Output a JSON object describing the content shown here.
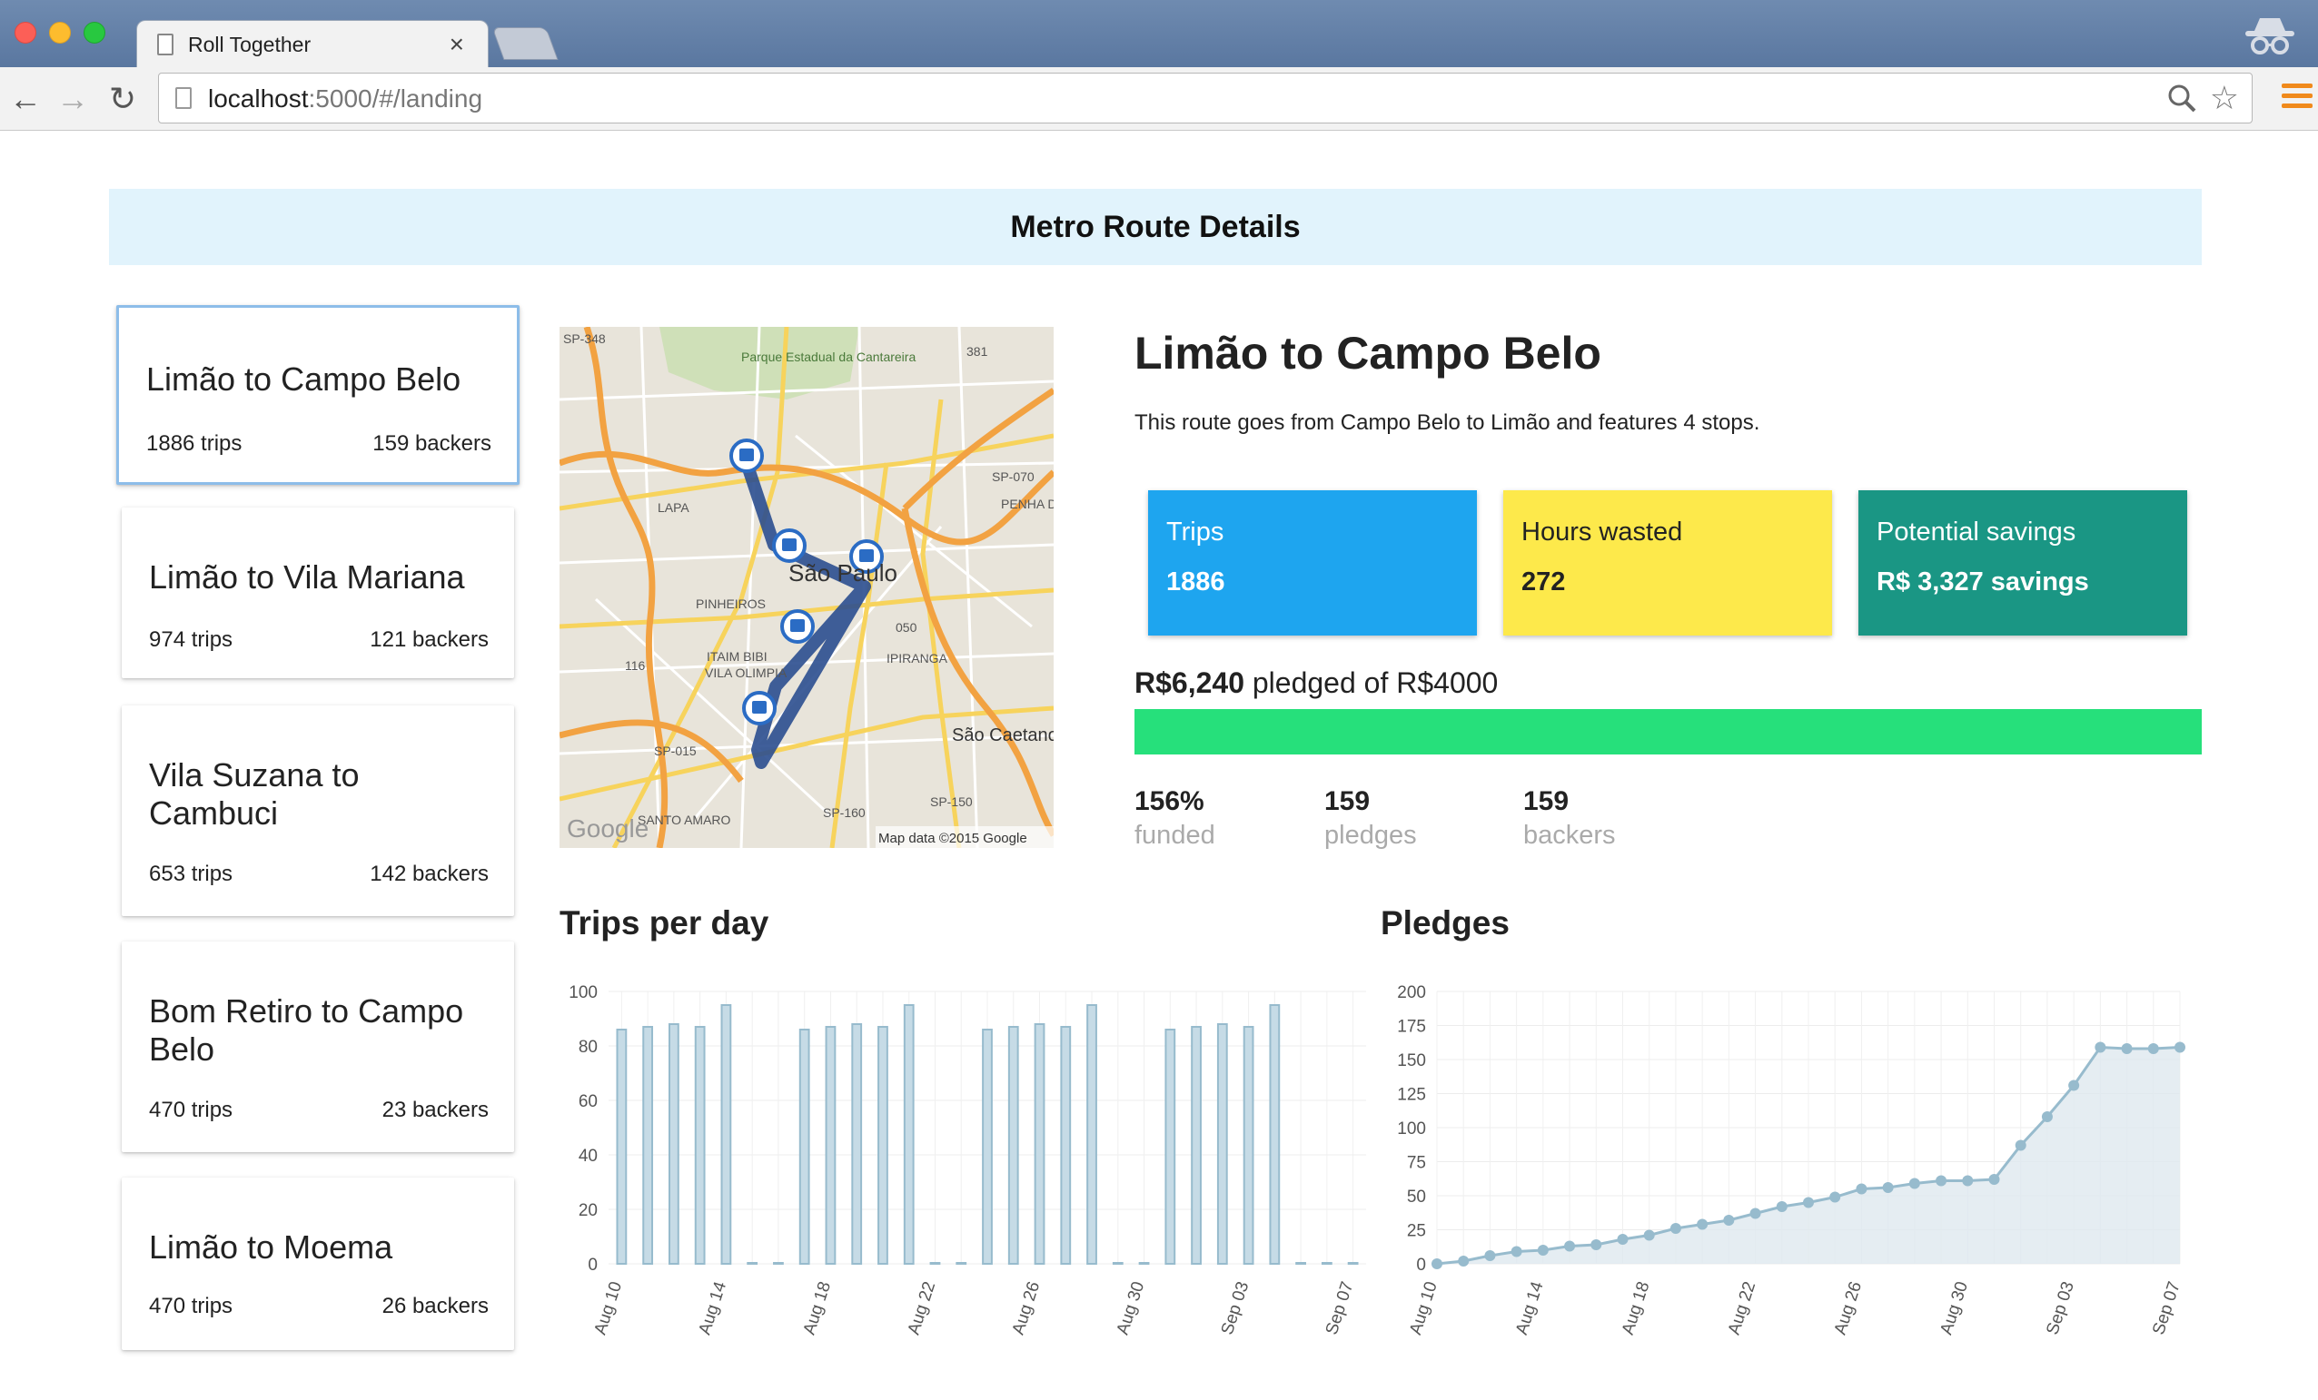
{
  "browser": {
    "tab_title": "Roll Together",
    "tab_close": "×",
    "url_host": "localhost",
    "url_rest": ":5000/#/landing"
  },
  "page": {
    "title": "Metro Route Details"
  },
  "routes": [
    {
      "name": "Limão to Campo Belo",
      "trips": "1886 trips",
      "backers": "159 backers"
    },
    {
      "name": "Limão to Vila Mariana",
      "trips": "974 trips",
      "backers": "121 backers"
    },
    {
      "name": "Vila Suzana to Cambuci",
      "trips": "653 trips",
      "backers": "142 backers"
    },
    {
      "name": "Bom Retiro to Campo Belo",
      "trips": "470 trips",
      "backers": "23 backers"
    },
    {
      "name": "Limão to Moema",
      "trips": "470 trips",
      "backers": "26 backers"
    }
  ],
  "map": {
    "labels": [
      "SP-348",
      "Parque Estadual da Cantareira",
      "381",
      "SP-070",
      "LAPA",
      "PENHA DE FRANÇA",
      "São Paulo",
      "PINHEIROS",
      "050",
      "116",
      "ITAIM BIBI",
      "VILA OLIMPIA",
      "IPIRANGA",
      "SP-015",
      "São Caetano do Sul",
      "SANTO AMARO",
      "SP-160",
      "SP-150",
      "Google"
    ],
    "attribution": "Map data ©2015 Google"
  },
  "detail": {
    "title": "Limão to Campo Belo",
    "description": "This route goes from Campo Belo to Limão and features 4 stops.",
    "stats": [
      {
        "label": "Trips",
        "value": "1886",
        "color": "#1ea5ef"
      },
      {
        "label": "Hours wasted",
        "value": "272",
        "color": "#fde94b"
      },
      {
        "label": "Potential savings",
        "value": "R$ 3,327 savings",
        "color": "#1a9684"
      }
    ],
    "pledged_amount": "R$6,240",
    "pledged_text": "pledged of R$4000",
    "progress_fraction": 1.0,
    "progress_color": "#26e07b",
    "metrics": [
      {
        "value": "156%",
        "label": "funded"
      },
      {
        "value": "159",
        "label": "pledges"
      },
      {
        "value": "159",
        "label": "backers"
      }
    ]
  },
  "chart_data": [
    {
      "type": "bar",
      "title": "Trips per day",
      "xlabel": "",
      "ylabel": "",
      "ylim": [
        0,
        100
      ],
      "yticks": [
        0,
        20,
        40,
        60,
        80,
        100
      ],
      "grid": true,
      "color": "#97bbcd",
      "x": [
        "Aug 10",
        "Aug 11",
        "Aug 12",
        "Aug 13",
        "Aug 14",
        "Aug 15",
        "Aug 16",
        "Aug 17",
        "Aug 18",
        "Aug 19",
        "Aug 20",
        "Aug 21",
        "Aug 22",
        "Aug 23",
        "Aug 24",
        "Aug 25",
        "Aug 26",
        "Aug 27",
        "Aug 28",
        "Aug 29",
        "Aug 30",
        "Aug 31",
        "Sep 01",
        "Sep 02",
        "Sep 03",
        "Sep 04",
        "Sep 05",
        "Sep 06",
        "Sep 07"
      ],
      "xtick_labels": [
        "Aug 10",
        "Aug 14",
        "Aug 18",
        "Aug 22",
        "Aug 26",
        "Aug 30",
        "Sep 03",
        "Sep 07"
      ],
      "values": [
        86,
        87,
        88,
        87,
        95,
        0,
        0,
        86,
        87,
        88,
        87,
        95,
        0,
        0,
        86,
        87,
        88,
        87,
        95,
        0,
        0,
        86,
        87,
        88,
        87,
        95,
        0,
        0,
        0
      ]
    },
    {
      "type": "area",
      "title": "Pledges",
      "xlabel": "",
      "ylabel": "",
      "ylim": [
        0,
        200
      ],
      "yticks": [
        0,
        25,
        50,
        75,
        100,
        125,
        150,
        175,
        200
      ],
      "grid": true,
      "color": "#97bbcd",
      "fill": "#dfe9ef",
      "x": [
        "Aug 10",
        "Aug 11",
        "Aug 12",
        "Aug 13",
        "Aug 14",
        "Aug 15",
        "Aug 16",
        "Aug 17",
        "Aug 18",
        "Aug 19",
        "Aug 20",
        "Aug 21",
        "Aug 22",
        "Aug 23",
        "Aug 24",
        "Aug 25",
        "Aug 26",
        "Aug 27",
        "Aug 28",
        "Aug 29",
        "Aug 30",
        "Aug 31",
        "Sep 01",
        "Sep 02",
        "Sep 03",
        "Sep 04",
        "Sep 05",
        "Sep 06",
        "Sep 07"
      ],
      "xtick_labels": [
        "Aug 10",
        "Aug 14",
        "Aug 18",
        "Aug 22",
        "Aug 26",
        "Aug 30",
        "Sep 03",
        "Sep 07"
      ],
      "values": [
        0,
        2,
        6,
        9,
        10,
        13,
        14,
        18,
        21,
        26,
        29,
        32,
        37,
        42,
        45,
        49,
        55,
        56,
        59,
        61,
        61,
        62,
        87,
        108,
        131,
        159,
        158,
        158,
        159
      ]
    }
  ]
}
